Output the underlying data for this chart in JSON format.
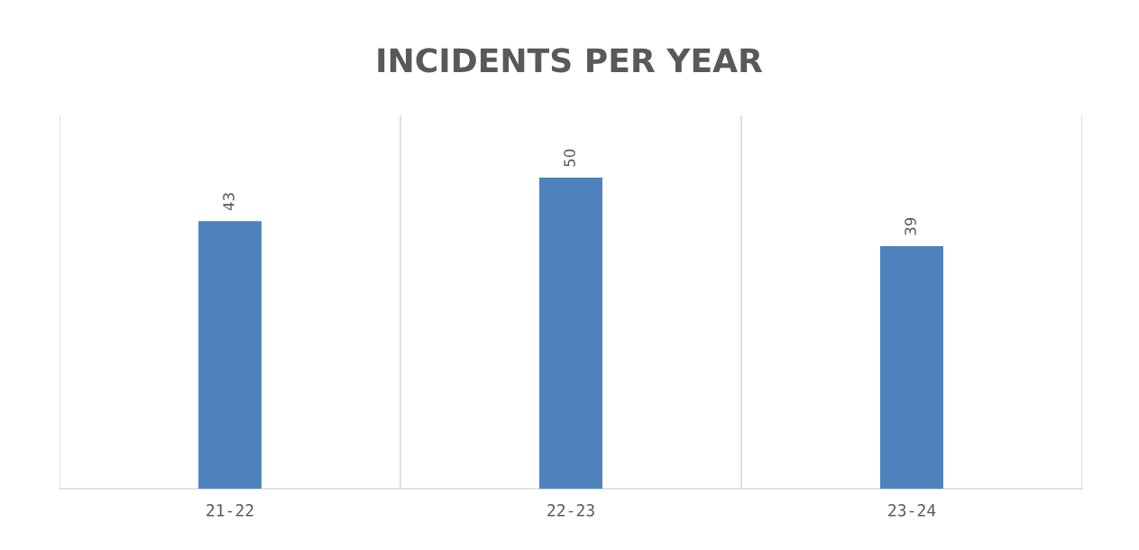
{
  "chart_data": {
    "type": "bar",
    "title": "INCIDENTS PER YEAR",
    "categories": [
      "21-22",
      "22-23",
      "23-24"
    ],
    "values": [
      43,
      50,
      39
    ],
    "color": "#4f81bd",
    "ylim": [
      0,
      60
    ],
    "tick_labels": "x",
    "grid": "x",
    "data_labels": true
  }
}
